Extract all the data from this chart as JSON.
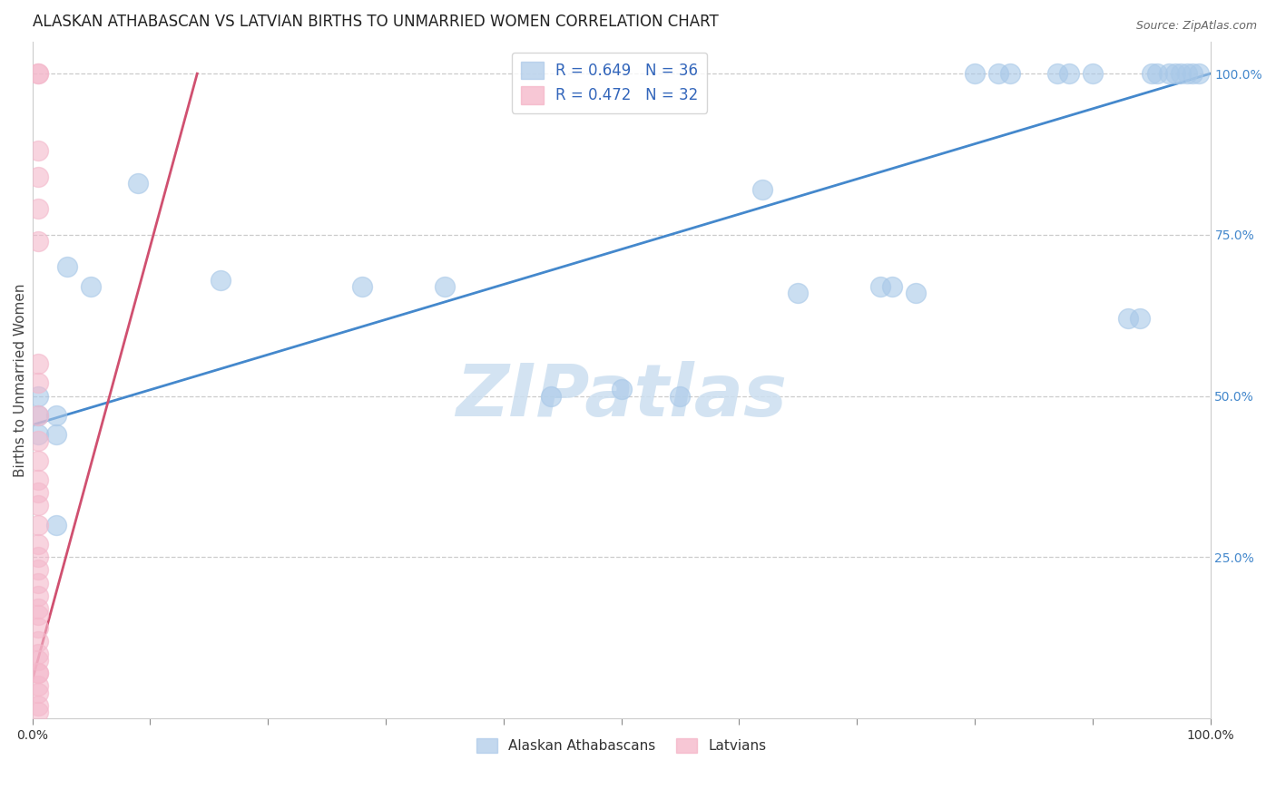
{
  "title": "ALASKAN ATHABASCAN VS LATVIAN BIRTHS TO UNMARRIED WOMEN CORRELATION CHART",
  "source": "Source: ZipAtlas.com",
  "ylabel": "Births to Unmarried Women",
  "xlim": [
    0.0,
    1.0
  ],
  "ylim": [
    0.0,
    1.05
  ],
  "x_ticks": [
    0.0,
    0.1,
    0.2,
    0.3,
    0.4,
    0.5,
    0.6,
    0.7,
    0.8,
    0.9,
    1.0
  ],
  "x_tick_labels": [
    "0.0%",
    "",
    "",
    "",
    "",
    "",
    "",
    "",
    "",
    "",
    "100.0%"
  ],
  "y_ticks_right": [
    0.25,
    0.5,
    0.75,
    1.0
  ],
  "y_tick_labels_right": [
    "25.0%",
    "50.0%",
    "75.0%",
    "100.0%"
  ],
  "watermark": "ZIPatlas",
  "legend_blue_label": "R = 0.649   N = 36",
  "legend_pink_label": "R = 0.472   N = 32",
  "blue_scatter_color": "#a8c8e8",
  "pink_scatter_color": "#f4b8cb",
  "line_blue_color": "#4488cc",
  "line_pink_color": "#d05070",
  "blue_scatter_x": [
    0.005,
    0.005,
    0.005,
    0.02,
    0.02,
    0.02,
    0.03,
    0.05,
    0.09,
    0.16,
    0.28,
    0.35,
    0.44,
    0.5,
    0.55,
    0.62,
    0.65,
    0.72,
    0.73,
    0.75,
    0.8,
    0.82,
    0.83,
    0.87,
    0.88,
    0.9,
    0.93,
    0.94,
    0.95,
    0.955,
    0.965,
    0.97,
    0.975,
    0.98,
    0.985,
    0.99
  ],
  "blue_scatter_y": [
    0.44,
    0.47,
    0.5,
    0.3,
    0.44,
    0.47,
    0.7,
    0.67,
    0.83,
    0.68,
    0.67,
    0.67,
    0.5,
    0.51,
    0.5,
    0.82,
    0.66,
    0.67,
    0.67,
    0.66,
    1.0,
    1.0,
    1.0,
    1.0,
    1.0,
    1.0,
    0.62,
    0.62,
    1.0,
    1.0,
    1.0,
    1.0,
    1.0,
    1.0,
    1.0,
    1.0
  ],
  "pink_scatter_x": [
    0.005,
    0.005,
    0.005,
    0.005,
    0.005,
    0.005,
    0.005,
    0.005,
    0.005,
    0.005,
    0.005,
    0.005,
    0.005,
    0.005,
    0.005,
    0.005,
    0.005,
    0.005,
    0.005,
    0.005,
    0.005,
    0.005,
    0.005,
    0.005,
    0.005,
    0.005,
    0.005,
    0.005,
    0.005,
    0.005,
    0.005,
    0.005
  ],
  "pink_scatter_y": [
    1.0,
    1.0,
    0.88,
    0.84,
    0.79,
    0.74,
    0.55,
    0.52,
    0.47,
    0.43,
    0.4,
    0.37,
    0.35,
    0.33,
    0.3,
    0.27,
    0.25,
    0.23,
    0.21,
    0.19,
    0.17,
    0.16,
    0.14,
    0.12,
    0.1,
    0.09,
    0.07,
    0.07,
    0.05,
    0.04,
    0.02,
    0.01
  ],
  "blue_line": [
    0.0,
    0.455,
    1.0,
    1.0
  ],
  "pink_line": [
    -0.005,
    0.025,
    0.14,
    1.0
  ],
  "grid_color": "#cccccc",
  "background_color": "#ffffff",
  "title_fontsize": 12,
  "axis_label_fontsize": 11,
  "tick_fontsize": 10,
  "legend_fontsize": 12,
  "scatter_size": 250,
  "scatter_alpha": 0.6
}
